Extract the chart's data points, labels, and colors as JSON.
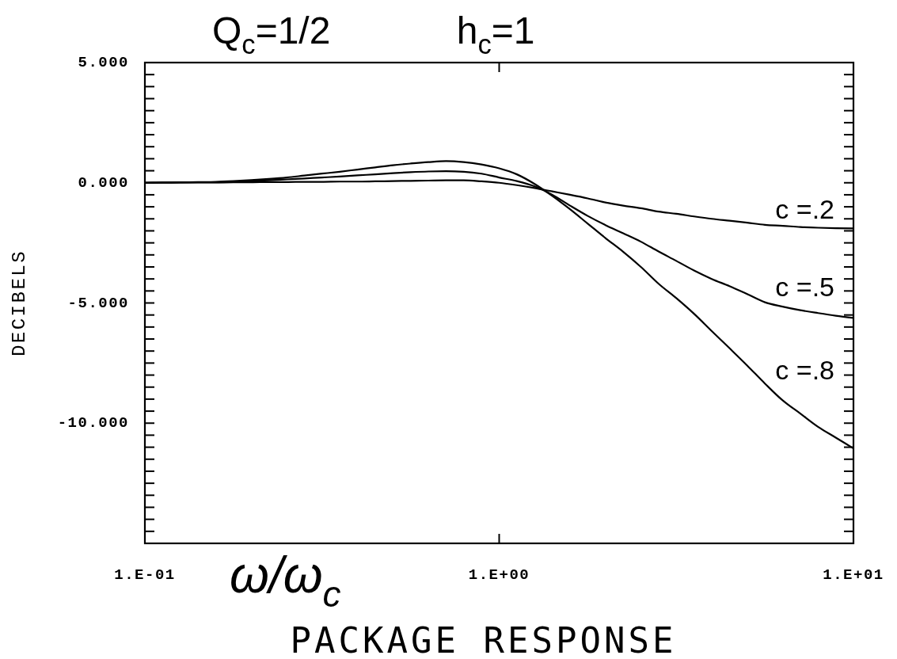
{
  "chart_data": {
    "type": "line",
    "title": "PACKAGE RESPONSE",
    "subtitle": "Q$_{c}$=1/2   h$_{c}$=1",
    "xlabel": "ω/ω$_{c}$",
    "ylabel": "DECIBELS",
    "legend": "right",
    "categories": [
      "1.E-01",
      null,
      null,
      null,
      null,
      null,
      null,
      null,
      null,
      null,
      null,
      null,
      null,
      null,
      null,
      null,
      null,
      null,
      null,
      null,
      "1.E+00",
      null,
      null,
      null,
      null,
      null,
      null,
      null,
      null,
      null,
      null,
      null,
      null,
      null,
      null,
      null,
      null,
      null,
      null,
      null,
      "1.E+01"
    ],
    "ylim": [
      -15,
      5
    ],
    "yticks": [
      {
        "value": 5,
        "label": "5.000"
      },
      {
        "value": 4.5,
        "label": null
      },
      {
        "value": 4,
        "label": null
      },
      {
        "value": 3.5,
        "label": null
      },
      {
        "value": 3,
        "label": null
      },
      {
        "value": 2.5,
        "label": null
      },
      {
        "value": 2,
        "label": null
      },
      {
        "value": 1.5,
        "label": null
      },
      {
        "value": 1,
        "label": null
      },
      {
        "value": 0.5,
        "label": null
      },
      {
        "value": 0,
        "label": "0.000"
      },
      {
        "value": -0.5,
        "label": null
      },
      {
        "value": -1,
        "label": null
      },
      {
        "value": -1.5,
        "label": null
      },
      {
        "value": -2,
        "label": null
      },
      {
        "value": -2.5,
        "label": null
      },
      {
        "value": -3,
        "label": null
      },
      {
        "value": -3.5,
        "label": null
      },
      {
        "value": -4,
        "label": null
      },
      {
        "value": -4.5,
        "label": null
      },
      {
        "value": -5,
        "label": "-5.000"
      },
      {
        "value": -5.5,
        "label": null
      },
      {
        "value": -6,
        "label": null
      },
      {
        "value": -6.5,
        "label": null
      },
      {
        "value": -7,
        "label": null
      },
      {
        "value": -7.5,
        "label": null
      },
      {
        "value": -8,
        "label": null
      },
      {
        "value": -8.5,
        "label": null
      },
      {
        "value": -9,
        "label": null
      },
      {
        "value": -9.5,
        "label": null
      },
      {
        "value": -10,
        "label": "-10.000"
      },
      {
        "value": -10.5,
        "label": null
      },
      {
        "value": -11,
        "label": null
      },
      {
        "value": -11.5,
        "label": null
      },
      {
        "value": -12,
        "label": null
      },
      {
        "value": -12.5,
        "label": null
      },
      {
        "value": -13,
        "label": null
      },
      {
        "value": -13.5,
        "label": null
      },
      {
        "value": -14,
        "label": null
      },
      {
        "value": -14.5,
        "label": null
      }
    ],
    "series": [
      {
        "name": "c =.2",
        "color": "#000000",
        "values": [
          0,
          0,
          0.01,
          0.01,
          0.01,
          0.02,
          0.02,
          0.03,
          0.03,
          0.04,
          0.04,
          0.05,
          0.05,
          0.06,
          0.07,
          0.08,
          0.09,
          0.1,
          0.1,
          0.06,
          0,
          -0.1,
          -0.22,
          -0.36,
          -0.5,
          -0.65,
          -0.82,
          -0.95,
          -1.06,
          -1.2,
          -1.29,
          -1.4,
          -1.5,
          -1.58,
          -1.66,
          -1.75,
          -1.79,
          -1.84,
          -1.87,
          -1.89,
          -1.9
        ]
      },
      {
        "name": "c =.5",
        "color": "#000000",
        "values": [
          0,
          0.01,
          0.01,
          0.02,
          0.02,
          0.04,
          0.07,
          0.1,
          0.14,
          0.18,
          0.22,
          0.26,
          0.31,
          0.35,
          0.4,
          0.44,
          0.47,
          0.48,
          0.46,
          0.38,
          0.22,
          0.07,
          -0.15,
          -0.5,
          -0.95,
          -1.38,
          -1.76,
          -2.1,
          -2.45,
          -2.86,
          -3.25,
          -3.65,
          -4,
          -4.3,
          -4.63,
          -4.97,
          -5.15,
          -5.3,
          -5.42,
          -5.53,
          -5.62
        ]
      },
      {
        "name": "c =.8",
        "color": "#000000",
        "values": [
          0,
          0.01,
          0.02,
          0.03,
          0.04,
          0.07,
          0.11,
          0.16,
          0.22,
          0.3,
          0.38,
          0.46,
          0.55,
          0.64,
          0.73,
          0.8,
          0.86,
          0.9,
          0.86,
          0.76,
          0.6,
          0.35,
          -0.05,
          -0.55,
          -1.1,
          -1.7,
          -2.3,
          -2.87,
          -3.5,
          -4.2,
          -4.8,
          -5.45,
          -6.17,
          -6.88,
          -7.6,
          -8.35,
          -9.05,
          -9.6,
          -10.15,
          -10.6,
          -11.05
        ]
      }
    ]
  }
}
